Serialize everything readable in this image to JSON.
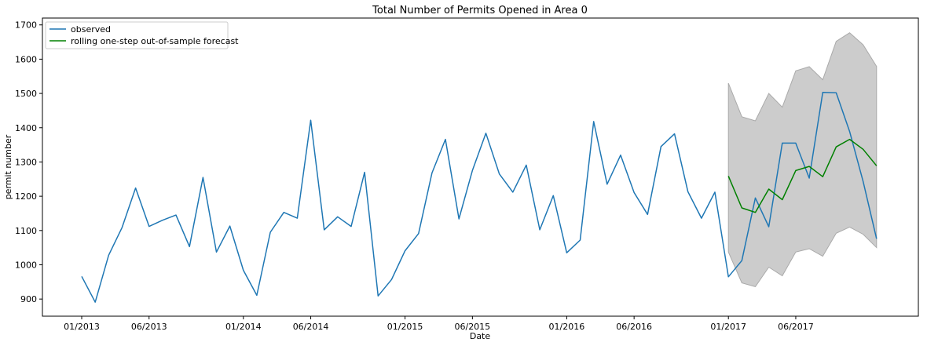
{
  "chart_data": {
    "type": "line",
    "title": "Total Number of Permits Opened in Area 0",
    "xlabel": "Date",
    "ylabel": "permit number",
    "x_ticks": [
      "01/2013",
      "06/2013",
      "01/2014",
      "06/2014",
      "01/2015",
      "06/2015",
      "01/2016",
      "06/2016",
      "01/2017",
      "06/2017"
    ],
    "y_ticks": [
      900,
      1000,
      1100,
      1200,
      1300,
      1400,
      1500,
      1600,
      1700
    ],
    "ylim": [
      850,
      1720
    ],
    "grid": false,
    "legend_position": "top-left",
    "series": [
      {
        "name": "observed",
        "color": "#1f77b4",
        "x": [
          "2013-01",
          "2013-02",
          "2013-03",
          "2013-04",
          "2013-05",
          "2013-06",
          "2013-07",
          "2013-08",
          "2013-09",
          "2013-10",
          "2013-11",
          "2013-12",
          "2014-01",
          "2014-02",
          "2014-03",
          "2014-04",
          "2014-05",
          "2014-06",
          "2014-07",
          "2014-08",
          "2014-09",
          "2014-10",
          "2014-11",
          "2014-12",
          "2015-01",
          "2015-02",
          "2015-03",
          "2015-04",
          "2015-05",
          "2015-06",
          "2015-07",
          "2015-08",
          "2015-09",
          "2015-10",
          "2015-11",
          "2015-12",
          "2016-01",
          "2016-02",
          "2016-03",
          "2016-04",
          "2016-05",
          "2016-06",
          "2016-07",
          "2016-08",
          "2016-09",
          "2016-10",
          "2016-11",
          "2016-12",
          "2017-01",
          "2017-02",
          "2017-03",
          "2017-04",
          "2017-05",
          "2017-06",
          "2017-07",
          "2017-08",
          "2017-09",
          "2017-10",
          "2017-11",
          "2017-12"
        ],
        "values": [
          966,
          891,
          1028,
          1109,
          1224,
          1112,
          1130,
          1145,
          1053,
          1255,
          1037,
          1113,
          984,
          911,
          1095,
          1153,
          1136,
          1422,
          1102,
          1140,
          1112,
          1270,
          909,
          957,
          1041,
          1091,
          1268,
          1366,
          1134,
          1275,
          1384,
          1265,
          1212,
          1291,
          1102,
          1202,
          1035,
          1072,
          1418,
          1235,
          1320,
          1211,
          1147,
          1345,
          1382,
          1213,
          1136,
          1212,
          965,
          1012,
          1195,
          1111,
          1355,
          1355,
          1253,
          1503,
          1502,
          1389,
          1243,
          1076
        ]
      },
      {
        "name": "rolling one-step out-of-sample forecast",
        "color": "#008000",
        "x": [
          "2017-01",
          "2017-02",
          "2017-03",
          "2017-04",
          "2017-05",
          "2017-06",
          "2017-07",
          "2017-08",
          "2017-09",
          "2017-10",
          "2017-11",
          "2017-12"
        ],
        "values": [
          1259,
          1166,
          1153,
          1221,
          1190,
          1275,
          1287,
          1257,
          1344,
          1366,
          1337,
          1289
        ]
      }
    ],
    "confidence_band": {
      "color": "#cccccc",
      "x": [
        "2017-01",
        "2017-02",
        "2017-03",
        "2017-04",
        "2017-05",
        "2017-06",
        "2017-07",
        "2017-08",
        "2017-09",
        "2017-10",
        "2017-11",
        "2017-12"
      ],
      "upper": [
        1530,
        1432,
        1420,
        1500,
        1460,
        1566,
        1578,
        1540,
        1652,
        1677,
        1642,
        1579
      ],
      "lower": [
        1037,
        947,
        936,
        993,
        968,
        1037,
        1047,
        1025,
        1092,
        1110,
        1089,
        1050
      ]
    }
  }
}
